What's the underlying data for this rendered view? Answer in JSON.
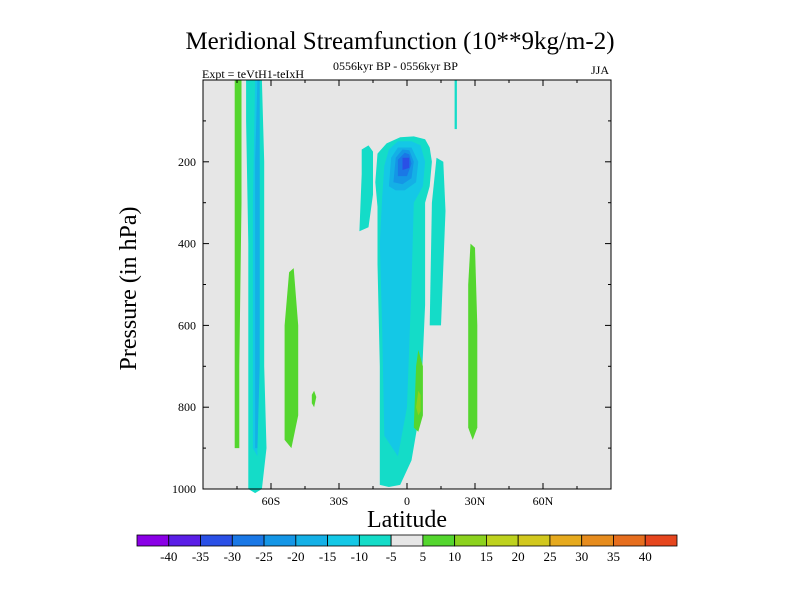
{
  "chart_data": {
    "type": "contour",
    "title": "Meridional Streamfunction (10**9kg/m-2)",
    "experiment_label": "Expt = teVtH1-teIxH",
    "time_label": "0556kyr BP - 0556kyr BP",
    "season_label": "JJA",
    "xlabel": "Latitude",
    "ylabel": "Pressure (in hPa)",
    "xlim": [
      -90,
      90
    ],
    "ylim": [
      1000,
      0
    ],
    "x_ticks": [
      -60,
      -30,
      0,
      30,
      60
    ],
    "x_tick_labels": [
      "60S",
      "30S",
      "0",
      "30N",
      "60N"
    ],
    "y_ticks": [
      200,
      400,
      600,
      800,
      1000
    ],
    "y_tick_labels": [
      "200",
      "400",
      "600",
      "800",
      "1000"
    ],
    "colorbar": {
      "labels": [
        "-40",
        "-35",
        "-30",
        "-25",
        "-20",
        "-15",
        "-10",
        "-5",
        "5",
        "10",
        "15",
        "20",
        "25",
        "30",
        "35",
        "40"
      ],
      "colors": [
        "#8a00e6",
        "#5a1ee6",
        "#2a50e6",
        "#1a78e6",
        "#1496e6",
        "#14b0e6",
        "#14c8e6",
        "#14dcc8",
        "#e6e6e6",
        "#54d62e",
        "#8cd21e",
        "#bed21e",
        "#d2c81e",
        "#e6aa1e",
        "#e68c1e",
        "#e66e1e",
        "#e6461e"
      ]
    },
    "contour_regions": [
      {
        "level": -5,
        "color": "#14dcc8",
        "description": "broad tropical column",
        "polygon": [
          [
            -12,
            990
          ],
          [
            -12,
            700
          ],
          [
            -13,
            450
          ],
          [
            -13,
            310
          ],
          [
            -14,
            250
          ],
          [
            -13,
            180
          ],
          [
            -9,
            155
          ],
          [
            -3,
            140
          ],
          [
            3,
            138
          ],
          [
            8,
            145
          ],
          [
            10,
            165
          ],
          [
            11,
            200
          ],
          [
            10,
            260
          ],
          [
            8,
            300
          ],
          [
            8,
            400
          ],
          [
            8,
            550
          ],
          [
            6,
            800
          ],
          [
            2,
            930
          ],
          [
            -3,
            990
          ],
          [
            -8,
            995
          ]
        ]
      },
      {
        "level": -5,
        "color": "#14dcc8",
        "description": "left arm",
        "polygon": [
          [
            -21,
            370
          ],
          [
            -20,
            230
          ],
          [
            -20,
            170
          ],
          [
            -17,
            160
          ],
          [
            -15,
            175
          ],
          [
            -15,
            280
          ],
          [
            -17,
            360
          ]
        ]
      },
      {
        "level": -5,
        "color": "#14dcc8",
        "description": "right arm",
        "polygon": [
          [
            10,
            600
          ],
          [
            11,
            300
          ],
          [
            13,
            190
          ],
          [
            16,
            200
          ],
          [
            17,
            320
          ],
          [
            15,
            600
          ]
        ]
      },
      {
        "level": -5,
        "color": "#14dcc8",
        "description": "southern high latitudes",
        "polygon": [
          [
            -70,
            1000
          ],
          [
            -70,
            700
          ],
          [
            -70,
            400
          ],
          [
            -71,
            100
          ],
          [
            -71,
            0
          ],
          [
            -64,
            0
          ],
          [
            -63,
            200
          ],
          [
            -63,
            700
          ],
          [
            -62,
            900
          ],
          [
            -64,
            1000
          ],
          [
            -67,
            1010
          ]
        ]
      },
      {
        "level": -5,
        "color": "#14dcc8",
        "description": "northern tropics sliver",
        "polygon": [
          [
            21,
            0
          ],
          [
            21,
            120
          ],
          [
            22,
            120
          ],
          [
            22,
            0
          ]
        ]
      },
      {
        "level": -10,
        "color": "#14c8e6",
        "description": "tropical core",
        "polygon": [
          [
            -10,
            870
          ],
          [
            -11,
            600
          ],
          [
            -12,
            400
          ],
          [
            -11,
            290
          ],
          [
            -10,
            210
          ],
          [
            -8,
            170
          ],
          [
            -4,
            150
          ],
          [
            2,
            150
          ],
          [
            6,
            160
          ],
          [
            8,
            200
          ],
          [
            7,
            260
          ],
          [
            3,
            300
          ],
          [
            2,
            500
          ],
          [
            0,
            800
          ],
          [
            -4,
            920
          ]
        ]
      },
      {
        "level": -10,
        "color": "#14c8e6",
        "description": "southern high latitudes inner",
        "polygon": [
          [
            -68,
            900
          ],
          [
            -68,
            300
          ],
          [
            -67,
            0
          ],
          [
            -65,
            0
          ],
          [
            -65,
            600
          ],
          [
            -66,
            920
          ]
        ]
      },
      {
        "level": -15,
        "color": "#14b0e6",
        "description": "upper tropical cell",
        "polygon": [
          [
            -8,
            260
          ],
          [
            -7,
            190
          ],
          [
            -4,
            165
          ],
          [
            2,
            165
          ],
          [
            5,
            200
          ],
          [
            4,
            250
          ],
          [
            -1,
            270
          ],
          [
            -5,
            270
          ]
        ]
      },
      {
        "level": -15,
        "color": "#14b0e6",
        "description": "southern band",
        "polygon": [
          [
            -67,
            900
          ],
          [
            -67,
            200
          ],
          [
            -66,
            0
          ],
          [
            -65,
            0
          ],
          [
            -65,
            700
          ],
          [
            -66,
            900
          ]
        ]
      },
      {
        "level": -20,
        "color": "#1496e6",
        "description": "upper tropical cell",
        "polygon": [
          [
            -6,
            250
          ],
          [
            -5,
            190
          ],
          [
            -2,
            170
          ],
          [
            1,
            172
          ],
          [
            3,
            200
          ],
          [
            2,
            240
          ],
          [
            -2,
            255
          ]
        ]
      },
      {
        "level": -25,
        "color": "#1a78e6",
        "description": "upper tropical cell core",
        "polygon": [
          [
            -4,
            235
          ],
          [
            -4,
            195
          ],
          [
            -1,
            178
          ],
          [
            1,
            182
          ],
          [
            2,
            205
          ],
          [
            0,
            235
          ]
        ]
      },
      {
        "level": -30,
        "color": "#2a50e6",
        "description": "maximum",
        "polygon": [
          [
            -2,
            220
          ],
          [
            -2,
            190
          ],
          [
            1,
            190
          ],
          [
            1,
            215
          ]
        ]
      },
      {
        "level": 5,
        "color": "#54d62e",
        "description": "southern high latitudes positive",
        "polygon": [
          [
            -76,
            900
          ],
          [
            -76,
            500
          ],
          [
            -76,
            200
          ],
          [
            -76,
            0
          ],
          [
            -73,
            0
          ],
          [
            -73,
            300
          ],
          [
            -74,
            700
          ],
          [
            -74,
            900
          ]
        ]
      },
      {
        "level": 5,
        "color": "#54d62e",
        "description": "southern mid latitudes",
        "polygon": [
          [
            -54,
            880
          ],
          [
            -54,
            600
          ],
          [
            -52,
            470
          ],
          [
            -50,
            460
          ],
          [
            -48,
            600
          ],
          [
            -48,
            820
          ],
          [
            -51,
            900
          ]
        ]
      },
      {
        "level": 5,
        "color": "#54d62e",
        "description": "small patch",
        "polygon": [
          [
            -42,
            790
          ],
          [
            -42,
            770
          ],
          [
            -41,
            760
          ],
          [
            -40,
            775
          ],
          [
            -41,
            800
          ]
        ]
      },
      {
        "level": 5,
        "color": "#54d62e",
        "description": "northern tropics",
        "polygon": [
          [
            27,
            850
          ],
          [
            27,
            500
          ],
          [
            28,
            400
          ],
          [
            30,
            410
          ],
          [
            31,
            600
          ],
          [
            31,
            850
          ],
          [
            29,
            880
          ]
        ]
      },
      {
        "level": 5,
        "color": "#54d62e",
        "description": "equatorial positive",
        "polygon": [
          [
            3,
            850
          ],
          [
            4,
            700
          ],
          [
            5,
            660
          ],
          [
            7,
            700
          ],
          [
            7,
            820
          ],
          [
            5,
            860
          ]
        ]
      },
      {
        "level": 10,
        "color": "#8cd21e",
        "description": "equatorial core",
        "polygon": [
          [
            4,
            800
          ],
          [
            5,
            760
          ],
          [
            6,
            770
          ],
          [
            6,
            810
          ],
          [
            5,
            820
          ]
        ]
      }
    ]
  }
}
